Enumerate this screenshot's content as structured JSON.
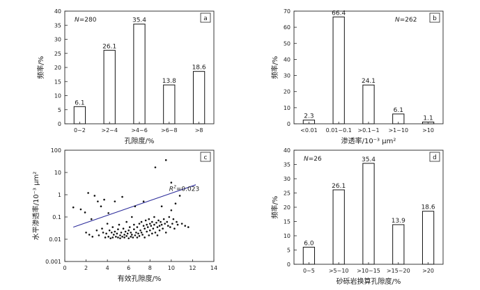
{
  "chart_data": [
    {
      "panel": "a",
      "type": "bar",
      "annotation": "N=280",
      "categories": [
        "0~2",
        ">2~4",
        ">4~6",
        ">6~8",
        ">8"
      ],
      "values": [
        6.1,
        26.1,
        35.4,
        13.8,
        18.6
      ],
      "data_labels": [
        "6.1",
        "26.1",
        "35.4",
        "13.8",
        "18.6"
      ],
      "xlabel": "孔隙度/%",
      "ylabel": "频率/%",
      "ylim": [
        0,
        40
      ],
      "yticks": [
        0,
        5,
        10,
        15,
        20,
        25,
        30,
        35,
        40
      ]
    },
    {
      "panel": "b",
      "type": "bar",
      "annotation": "N=262",
      "categories": [
        "<0.01",
        "0.01~0.1",
        ">0.1~1",
        ">1~10",
        ">10"
      ],
      "values": [
        2.3,
        66.4,
        24.1,
        6.1,
        1.1
      ],
      "data_labels": [
        "2.3",
        "66.4",
        "24.1",
        "6.1",
        "1.1"
      ],
      "xlabel": "渗透率/10⁻³ μm²",
      "ylabel": "频率/%",
      "ylim": [
        0,
        70
      ],
      "yticks": [
        0,
        10,
        20,
        30,
        40,
        50,
        60,
        70
      ]
    },
    {
      "panel": "c",
      "type": "scatter",
      "annotation": "R²=0.023",
      "xlabel": "有效孔隙度/%",
      "ylabel": "水平渗透率/10⁻³ μm²",
      "xlim": [
        0,
        14
      ],
      "ylim": [
        0.001,
        100
      ],
      "yscale": "log",
      "xticks": [
        "0",
        "2",
        "4",
        "6",
        "8",
        "10",
        "12",
        "14"
      ],
      "yticks": [
        "0.001",
        "0.01",
        "0.1",
        "1",
        "10",
        "100"
      ],
      "trendline": {
        "x": [
          0.8,
          12.3
        ],
        "y": [
          0.035,
          2.8
        ]
      },
      "points": [
        [
          0.8,
          0.27
        ],
        [
          1.5,
          0.22
        ],
        [
          1.9,
          0.16
        ],
        [
          2.0,
          0.02
        ],
        [
          2.2,
          1.2
        ],
        [
          2.3,
          0.016
        ],
        [
          2.5,
          0.08
        ],
        [
          2.6,
          0.013
        ],
        [
          2.8,
          0.9
        ],
        [
          3.0,
          0.025
        ],
        [
          3.1,
          0.5
        ],
        [
          3.2,
          0.015
        ],
        [
          3.4,
          0.3
        ],
        [
          3.5,
          0.03
        ],
        [
          3.6,
          0.02
        ],
        [
          3.7,
          0.6
        ],
        [
          3.8,
          0.012
        ],
        [
          3.9,
          0.018
        ],
        [
          4.0,
          0.05
        ],
        [
          4.1,
          0.15
        ],
        [
          4.1,
          0.013
        ],
        [
          4.2,
          0.025
        ],
        [
          4.3,
          0.011
        ],
        [
          4.4,
          0.02
        ],
        [
          4.5,
          0.035
        ],
        [
          4.5,
          0.012
        ],
        [
          4.6,
          0.016
        ],
        [
          4.7,
          0.022
        ],
        [
          4.7,
          0.5
        ],
        [
          4.8,
          0.013
        ],
        [
          4.9,
          0.018
        ],
        [
          5.0,
          0.012
        ],
        [
          5.0,
          0.028
        ],
        [
          5.1,
          0.045
        ],
        [
          5.2,
          0.015
        ],
        [
          5.2,
          0.011
        ],
        [
          5.3,
          0.02
        ],
        [
          5.4,
          0.8
        ],
        [
          5.4,
          0.013
        ],
        [
          5.5,
          0.03
        ],
        [
          5.6,
          0.016
        ],
        [
          5.6,
          0.012
        ],
        [
          5.7,
          0.022
        ],
        [
          5.8,
          0.06
        ],
        [
          5.8,
          0.014
        ],
        [
          5.9,
          0.018
        ],
        [
          6.0,
          0.011
        ],
        [
          6.0,
          0.025
        ],
        [
          6.1,
          0.035
        ],
        [
          6.2,
          0.013
        ],
        [
          6.2,
          0.02
        ],
        [
          6.3,
          0.1
        ],
        [
          6.3,
          0.016
        ],
        [
          6.4,
          0.012
        ],
        [
          6.5,
          0.028
        ],
        [
          6.5,
          0.045
        ],
        [
          6.6,
          0.015
        ],
        [
          6.6,
          0.3
        ],
        [
          6.7,
          0.02
        ],
        [
          6.8,
          0.012
        ],
        [
          6.8,
          0.035
        ],
        [
          6.9,
          0.018
        ],
        [
          7.0,
          0.05
        ],
        [
          7.0,
          0.014
        ],
        [
          7.1,
          0.025
        ],
        [
          7.2,
          0.06
        ],
        [
          7.2,
          0.02
        ],
        [
          7.3,
          0.016
        ],
        [
          7.4,
          0.04
        ],
        [
          7.4,
          0.5
        ],
        [
          7.5,
          0.03
        ],
        [
          7.5,
          0.012
        ],
        [
          7.6,
          0.07
        ],
        [
          7.7,
          0.022
        ],
        [
          7.7,
          0.045
        ],
        [
          7.8,
          0.035
        ],
        [
          7.9,
          0.015
        ],
        [
          7.9,
          0.08
        ],
        [
          8.0,
          0.05
        ],
        [
          8.0,
          0.025
        ],
        [
          8.1,
          0.04
        ],
        [
          8.2,
          0.018
        ],
        [
          8.2,
          0.06
        ],
        [
          8.3,
          0.03
        ],
        [
          8.4,
          0.045
        ],
        [
          8.4,
          0.1
        ],
        [
          8.5,
          0.02
        ],
        [
          8.5,
          17.0
        ],
        [
          8.6,
          0.055
        ],
        [
          8.7,
          0.035
        ],
        [
          8.7,
          0.015
        ],
        [
          8.8,
          0.07
        ],
        [
          8.9,
          0.04
        ],
        [
          8.9,
          0.025
        ],
        [
          9.0,
          0.06
        ],
        [
          9.1,
          0.3
        ],
        [
          9.1,
          0.045
        ],
        [
          9.2,
          0.03
        ],
        [
          9.3,
          0.08
        ],
        [
          9.4,
          0.05
        ],
        [
          9.5,
          0.02
        ],
        [
          9.5,
          36.0
        ],
        [
          9.6,
          0.06
        ],
        [
          9.7,
          0.04
        ],
        [
          9.8,
          0.1
        ],
        [
          9.9,
          0.035
        ],
        [
          10.0,
          0.2
        ],
        [
          10.0,
          3.5
        ],
        [
          10.1,
          0.05
        ],
        [
          10.2,
          0.08
        ],
        [
          10.3,
          0.03
        ],
        [
          10.4,
          0.4
        ],
        [
          10.5,
          0.06
        ],
        [
          10.6,
          0.045
        ],
        [
          10.8,
          0.9
        ],
        [
          11.0,
          0.05
        ],
        [
          11.3,
          0.04
        ],
        [
          11.6,
          0.035
        ]
      ]
    },
    {
      "panel": "d",
      "type": "bar",
      "annotation": "N=26",
      "categories": [
        "0~5",
        ">5~10",
        ">10~15",
        ">15~20",
        ">20"
      ],
      "values": [
        6.0,
        26.1,
        35.4,
        13.9,
        18.6
      ],
      "data_labels": [
        "6.0",
        "26.1",
        "35.4",
        "13.9",
        "18.6"
      ],
      "xlabel": "砂砾岩换算孔隙度/%",
      "ylabel": "频率/%",
      "ylim": [
        0,
        40
      ],
      "yticks": [
        0,
        5,
        10,
        15,
        20,
        25,
        30,
        35,
        40
      ]
    }
  ]
}
